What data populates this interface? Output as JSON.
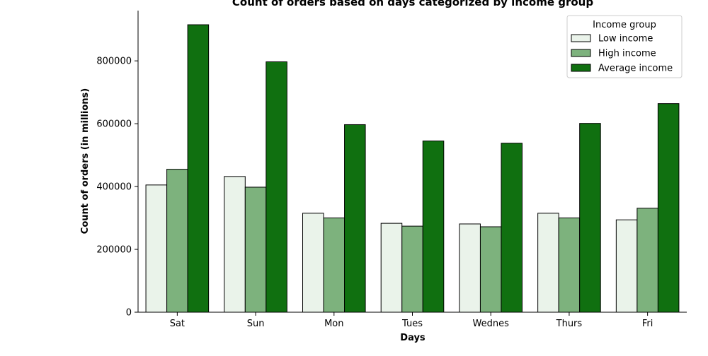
{
  "chart_data": {
    "type": "bar",
    "title": "Count of orders based on days categorized by income group",
    "xlabel": "Days",
    "ylabel": "Count of orders (in millions)",
    "categories": [
      "Sat",
      "Sun",
      "Mon",
      "Tues",
      "Wednes",
      "Thurs",
      "Fri"
    ],
    "series": [
      {
        "name": "Low income",
        "color": "#eaf3ea",
        "values": [
          405000,
          432000,
          315000,
          283000,
          281000,
          315000,
          294000
        ]
      },
      {
        "name": "High income",
        "color": "#7db27d",
        "values": [
          455000,
          398000,
          300000,
          274000,
          272000,
          300000,
          331000
        ]
      },
      {
        "name": "Average income",
        "color": "#107010",
        "values": [
          915000,
          797000,
          597000,
          545000,
          538000,
          601000,
          664000
        ]
      }
    ],
    "ylim": [
      0,
      960000
    ],
    "yticks": [
      0,
      200000,
      400000,
      600000,
      800000
    ],
    "ytick_labels": [
      "0",
      "200000",
      "400000",
      "600000",
      "800000"
    ],
    "legend": {
      "title": "Income group",
      "position": "top-right"
    },
    "grid": false,
    "spines": "left-bottom"
  }
}
